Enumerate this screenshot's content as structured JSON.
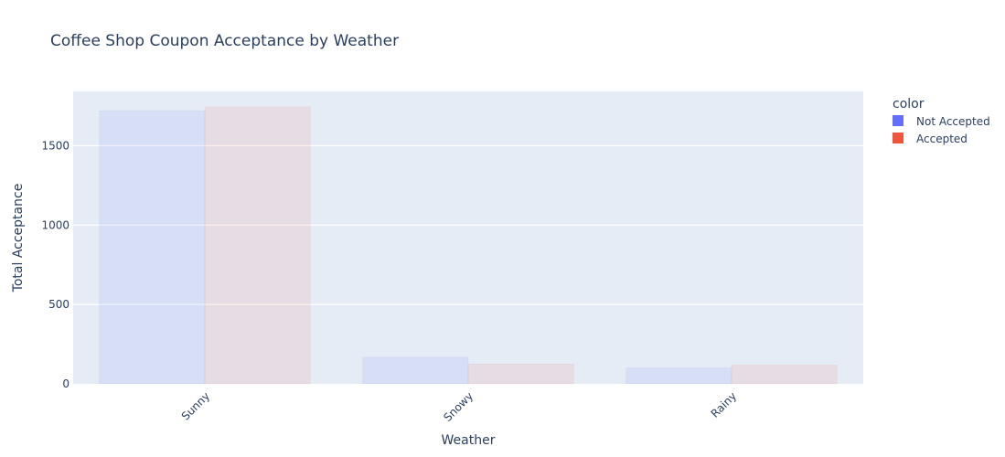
{
  "chart_data": {
    "type": "bar",
    "title": "Coffee Shop Coupon Acceptance by Weather",
    "xlabel": "Weather",
    "ylabel": "Total Acceptance",
    "categories": [
      "Sunny",
      "Snowy",
      "Rainy"
    ],
    "series": [
      {
        "name": "Not Accepted",
        "values": [
          1720,
          168,
          100
        ],
        "color": "#636efa"
      },
      {
        "name": "Accepted",
        "values": [
          1745,
          125,
          118
        ],
        "color": "#ef553b"
      }
    ],
    "ylim": [
      0,
      1842
    ],
    "yticks": [
      0,
      500,
      1000,
      1500
    ],
    "grid": true,
    "legend": {
      "title": "color",
      "position": "top-right"
    },
    "bar_opacity": 0.1
  }
}
